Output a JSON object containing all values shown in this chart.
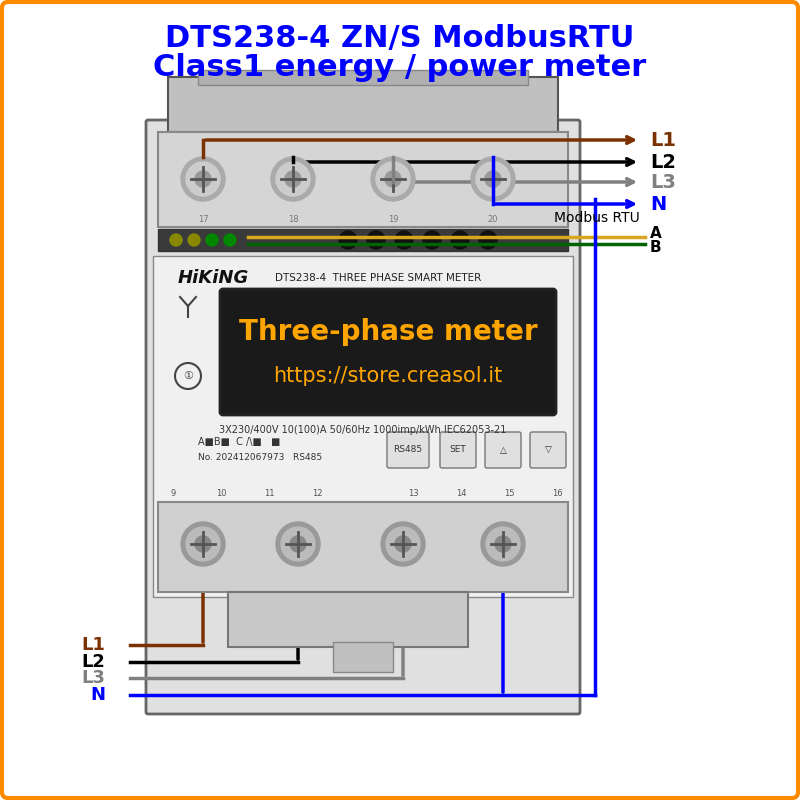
{
  "title_line1": "DTS238-4 ZN/S ModbusRTU",
  "title_line2": "Class1 energy / power meter",
  "title_color": "#0000ff",
  "title_fontsize": 22,
  "border_color": "#ff8c00",
  "bg_color": "#ffffff",
  "meter_display_text1": "Three-phase meter",
  "meter_display_text2": "https://store.creasol.it",
  "meter_display_color": "#ffa500",
  "meter_display_bg": "#1a1a1a",
  "label_L1_top": "L1",
  "label_L2_top": "L2",
  "label_L3_top": "L3",
  "label_N_top": "N",
  "label_L1_bot": "L1",
  "label_L2_bot": "L2",
  "label_L3_bot": "L3",
  "label_N_bot": "N",
  "label_modbus": "Modbus RTU",
  "label_A": "A",
  "label_B": "B",
  "color_L1": "#7B3200",
  "color_L2": "#000000",
  "color_L3": "#808080",
  "color_N": "#0000ff",
  "color_A": "#DAA520",
  "color_B": "#006400",
  "figsize": [
    8.0,
    8.0
  ],
  "dpi": 100
}
